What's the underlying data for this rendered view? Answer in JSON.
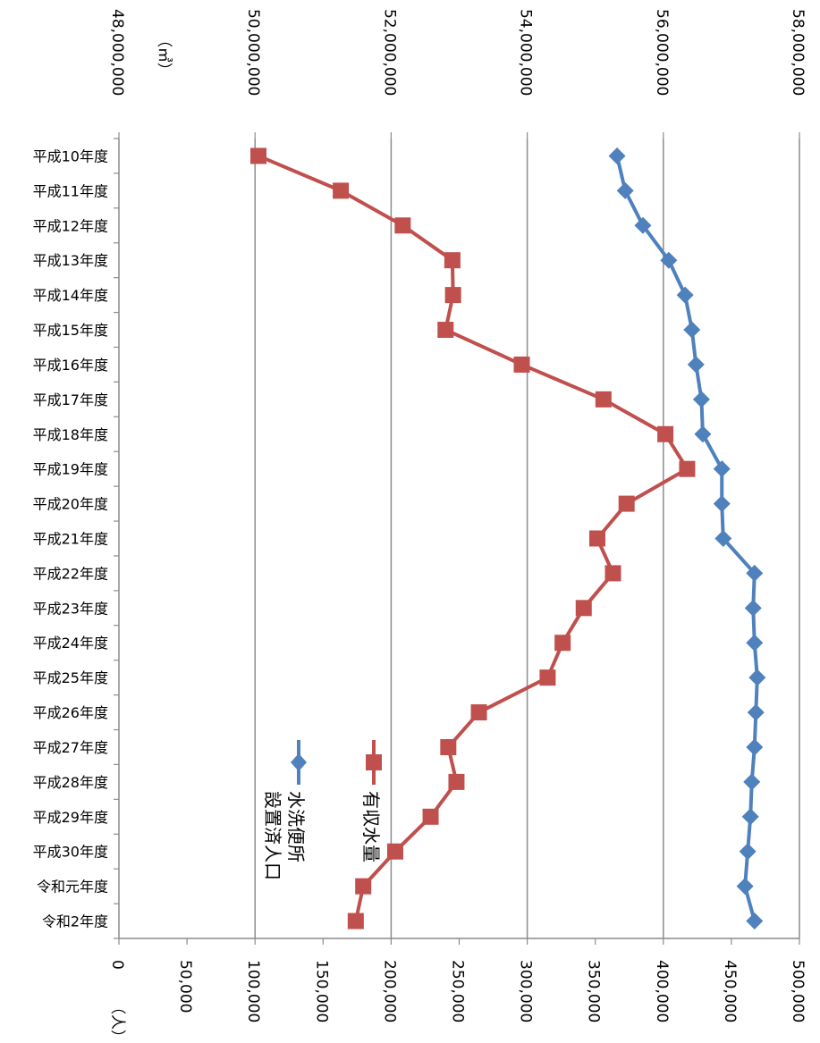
{
  "chart_data": {
    "type": "line",
    "orientation": "rotated-90-clockwise",
    "categories": [
      "平成10年度",
      "平成11年度",
      "平成12年度",
      "平成13年度",
      "平成14年度",
      "平成15年度",
      "平成16年度",
      "平成17年度",
      "平成18年度",
      "平成19年度",
      "平成20年度",
      "平成21年度",
      "平成22年度",
      "平成23年度",
      "平成24年度",
      "平成25年度",
      "平成26年度",
      "平成27年度",
      "平成28年度",
      "平成29年度",
      "平成30年度",
      "令和元年度",
      "令和2年度"
    ],
    "series": [
      {
        "name": "有収水量",
        "axis": "m3",
        "color": "#c0504d",
        "marker": "square",
        "values": [
          50050000,
          51260000,
          52170000,
          52900000,
          52910000,
          52800000,
          53920000,
          55120000,
          56030000,
          56350000,
          55460000,
          55030000,
          55260000,
          54830000,
          54520000,
          54300000,
          53290000,
          52840000,
          52960000,
          52580000,
          52060000,
          51590000,
          51480000
        ]
      },
      {
        "name": "水洗便所\n設置済人口",
        "legend_lines": [
          "水洗便所",
          "設置済人口"
        ],
        "axis": "persons",
        "color": "#4f81bd",
        "marker": "diamond",
        "values": [
          366000,
          372000,
          385000,
          404000,
          416000,
          421000,
          424000,
          428000,
          429000,
          443000,
          443000,
          444000,
          467000,
          466000,
          467000,
          469000,
          468000,
          467000,
          465000,
          464000,
          462000,
          460000,
          467000
        ]
      }
    ],
    "axis_m3": {
      "unit": "（㎥）",
      "min": 48000000,
      "max": 58000000,
      "step": 2000000,
      "ticks": [
        "48,000,000",
        "50,000,000",
        "52,000,000",
        "54,000,000",
        "56,000,000",
        "58,000,000"
      ]
    },
    "axis_persons": {
      "unit": "（人）",
      "min": 0,
      "max": 500000,
      "step": 50000,
      "ticks": [
        "0",
        "50,000",
        "100,000",
        "150,000",
        "200,000",
        "250,000",
        "300,000",
        "350,000",
        "400,000",
        "450,000",
        "500,000"
      ]
    },
    "grid": true,
    "legend_position": "bottom-left"
  }
}
